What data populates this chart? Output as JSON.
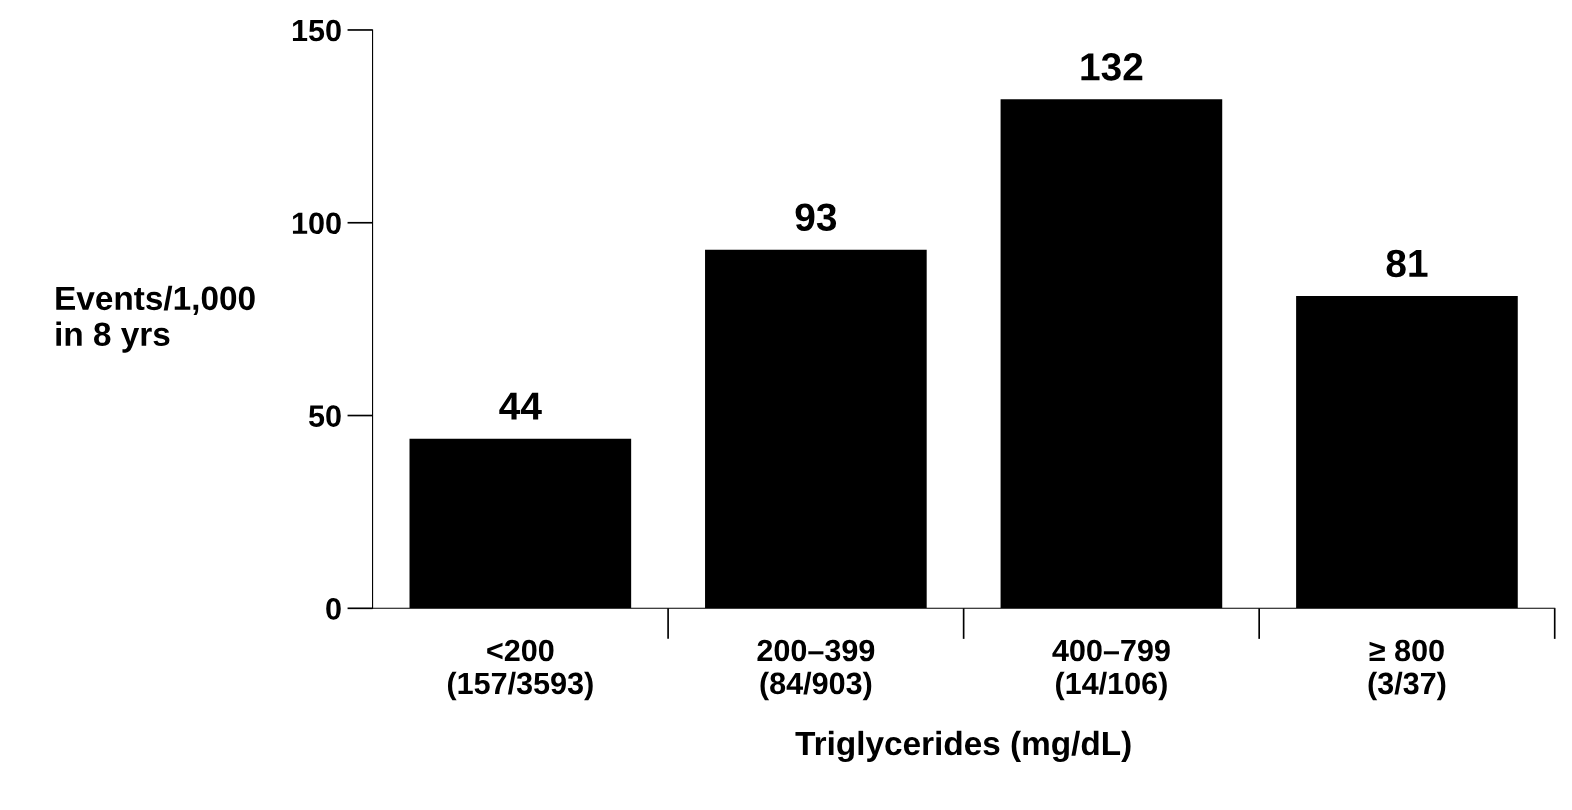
{
  "chart_data": {
    "type": "bar",
    "xlabel": "Triglycerides (mg/dL)",
    "ylabel": "Events/1,000\nin 8 yrs",
    "categories": [
      "<200\n(157/3593)",
      "200–399\n(84/903)",
      "400–799\n(14/106)",
      "≥ 800\n(3/37)"
    ],
    "values": [
      44,
      93,
      132,
      81
    ],
    "color": "#000000",
    "ylim": [
      0,
      150
    ],
    "yticks": [
      0,
      50,
      100,
      150
    ],
    "data_labels": true,
    "grid": false,
    "legend": false
  }
}
